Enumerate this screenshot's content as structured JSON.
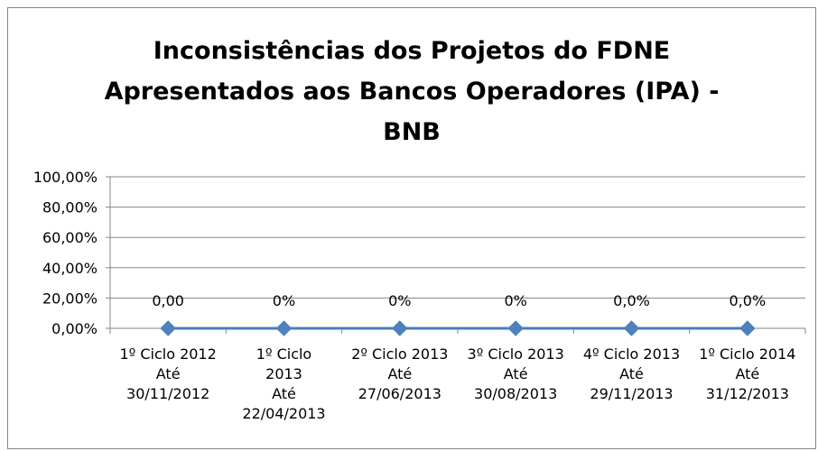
{
  "chart_data": {
    "type": "line",
    "title": "Inconsistências dos Projetos do FDNE\nApresentados aos Bancos Operadores (IPA) -\nBNB",
    "categories": [
      "1º Ciclo 2012\nAté\n30/11/2012",
      "1º  Ciclo\n2013\nAté\n22/04/2013",
      "2º Ciclo 2013\nAté\n27/06/2013",
      "3º Ciclo 2013\nAté\n30/08/2013",
      "4º Ciclo 2013\nAté\n29/11/2013",
      "1º Ciclo 2014\nAté\n31/12/2013"
    ],
    "series": [
      {
        "name": "IPA",
        "color": "#4a7ebb",
        "values": [
          0,
          0,
          0,
          0,
          0,
          0
        ],
        "value_labels": [
          "0,00",
          "0%",
          "0%",
          "0%",
          "0,0%",
          "0,0%"
        ]
      }
    ],
    "ylim": [
      0,
      100
    ],
    "yticks": [
      {
        "value": 0,
        "label": "0,00%"
      },
      {
        "value": 20,
        "label": "20,00%"
      },
      {
        "value": 40,
        "label": "40,00%"
      },
      {
        "value": 60,
        "label": "60,00%"
      },
      {
        "value": 80,
        "label": "80,00%"
      },
      {
        "value": 100,
        "label": "100,00%"
      }
    ],
    "grid": true
  }
}
